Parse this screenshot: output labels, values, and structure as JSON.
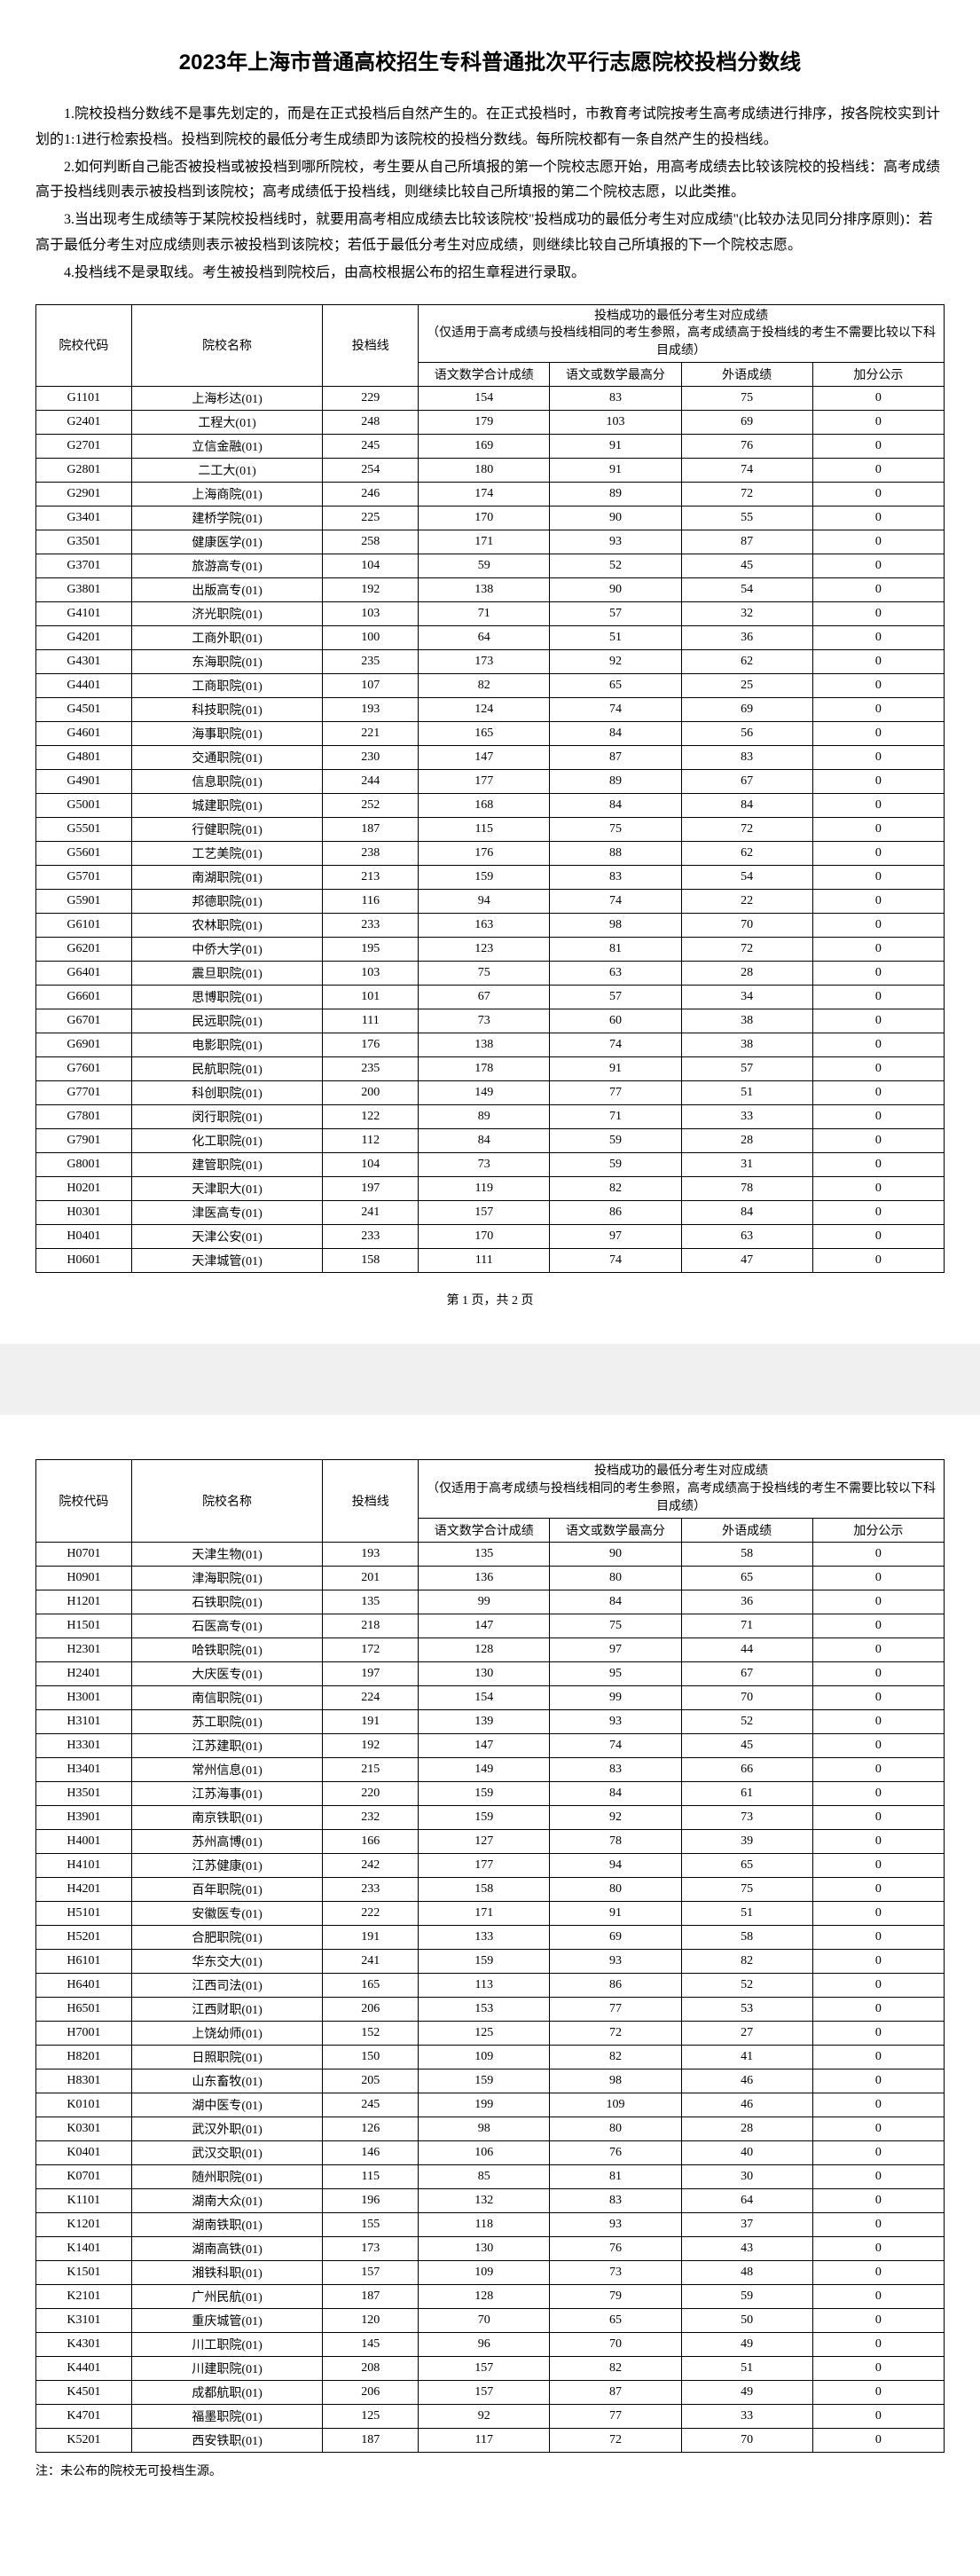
{
  "title": "2023年上海市普通高校招生专科普通批次平行志愿院校投档分数线",
  "intro": [
    "1.院校投档分数线不是事先划定的，而是在正式投档后自然产生的。在正式投档时，市教育考试院按考生高考成绩进行排序，按各院校实到计划的1:1进行检索投档。投档到院校的最低分考生成绩即为该院校的投档分数线。每所院校都有一条自然产生的投档线。",
    "2.如何判断自己能否被投档或被投档到哪所院校，考生要从自己所填报的第一个院校志愿开始，用高考成绩去比较该院校的投档线：高考成绩高于投档线则表示被投档到该院校；高考成绩低于投档线，则继续比较自己所填报的第二个院校志愿，以此类推。",
    "3.当出现考生成绩等于某院校投档线时，就要用高考相应成绩去比较该院校\"投档成功的最低分考生对应成绩\"(比较办法见同分排序原则)：若高于最低分考生对应成绩则表示被投档到该院校；若低于最低分考生对应成绩，则继续比较自己所填报的下一个院校志愿。",
    "4.投档线不是录取线。考生被投档到院校后，由高校根据公布的招生章程进行录取。"
  ],
  "headers": {
    "code": "院校代码",
    "name": "院校名称",
    "score": "投档线",
    "group_title": "投档成功的最低分考生对应成绩",
    "group_sub": "（仅适用于高考成绩与投档线相同的考生参照，高考成绩高于投档线的考生不需要比较以下科目成绩）",
    "sub1": "语文数学合计成绩",
    "sub2": "语文或数学最高分",
    "sub3": "外语成绩",
    "sub4": "加分公示"
  },
  "pageIndicator": "第 1 页，共 2 页",
  "footnote": "注：未公布的院校无可投档生源。",
  "rows1": [
    [
      "G1101",
      "上海杉达(01)",
      "229",
      "154",
      "83",
      "75",
      "0"
    ],
    [
      "G2401",
      "工程大(01)",
      "248",
      "179",
      "103",
      "69",
      "0"
    ],
    [
      "G2701",
      "立信金融(01)",
      "245",
      "169",
      "91",
      "76",
      "0"
    ],
    [
      "G2801",
      "二工大(01)",
      "254",
      "180",
      "91",
      "74",
      "0"
    ],
    [
      "G2901",
      "上海商院(01)",
      "246",
      "174",
      "89",
      "72",
      "0"
    ],
    [
      "G3401",
      "建桥学院(01)",
      "225",
      "170",
      "90",
      "55",
      "0"
    ],
    [
      "G3501",
      "健康医学(01)",
      "258",
      "171",
      "93",
      "87",
      "0"
    ],
    [
      "G3701",
      "旅游高专(01)",
      "104",
      "59",
      "52",
      "45",
      "0"
    ],
    [
      "G3801",
      "出版高专(01)",
      "192",
      "138",
      "90",
      "54",
      "0"
    ],
    [
      "G4101",
      "济光职院(01)",
      "103",
      "71",
      "57",
      "32",
      "0"
    ],
    [
      "G4201",
      "工商外职(01)",
      "100",
      "64",
      "51",
      "36",
      "0"
    ],
    [
      "G4301",
      "东海职院(01)",
      "235",
      "173",
      "92",
      "62",
      "0"
    ],
    [
      "G4401",
      "工商职院(01)",
      "107",
      "82",
      "65",
      "25",
      "0"
    ],
    [
      "G4501",
      "科技职院(01)",
      "193",
      "124",
      "74",
      "69",
      "0"
    ],
    [
      "G4601",
      "海事职院(01)",
      "221",
      "165",
      "84",
      "56",
      "0"
    ],
    [
      "G4801",
      "交通职院(01)",
      "230",
      "147",
      "87",
      "83",
      "0"
    ],
    [
      "G4901",
      "信息职院(01)",
      "244",
      "177",
      "89",
      "67",
      "0"
    ],
    [
      "G5001",
      "城建职院(01)",
      "252",
      "168",
      "84",
      "84",
      "0"
    ],
    [
      "G5501",
      "行健职院(01)",
      "187",
      "115",
      "75",
      "72",
      "0"
    ],
    [
      "G5601",
      "工艺美院(01)",
      "238",
      "176",
      "88",
      "62",
      "0"
    ],
    [
      "G5701",
      "南湖职院(01)",
      "213",
      "159",
      "83",
      "54",
      "0"
    ],
    [
      "G5901",
      "邦德职院(01)",
      "116",
      "94",
      "74",
      "22",
      "0"
    ],
    [
      "G6101",
      "农林职院(01)",
      "233",
      "163",
      "98",
      "70",
      "0"
    ],
    [
      "G6201",
      "中侨大学(01)",
      "195",
      "123",
      "81",
      "72",
      "0"
    ],
    [
      "G6401",
      "震旦职院(01)",
      "103",
      "75",
      "63",
      "28",
      "0"
    ],
    [
      "G6601",
      "思博职院(01)",
      "101",
      "67",
      "57",
      "34",
      "0"
    ],
    [
      "G6701",
      "民远职院(01)",
      "111",
      "73",
      "60",
      "38",
      "0"
    ],
    [
      "G6901",
      "电影职院(01)",
      "176",
      "138",
      "74",
      "38",
      "0"
    ],
    [
      "G7601",
      "民航职院(01)",
      "235",
      "178",
      "91",
      "57",
      "0"
    ],
    [
      "G7701",
      "科创职院(01)",
      "200",
      "149",
      "77",
      "51",
      "0"
    ],
    [
      "G7801",
      "闵行职院(01)",
      "122",
      "89",
      "71",
      "33",
      "0"
    ],
    [
      "G7901",
      "化工职院(01)",
      "112",
      "84",
      "59",
      "28",
      "0"
    ],
    [
      "G8001",
      "建管职院(01)",
      "104",
      "73",
      "59",
      "31",
      "0"
    ],
    [
      "H0201",
      "天津职大(01)",
      "197",
      "119",
      "82",
      "78",
      "0"
    ],
    [
      "H0301",
      "津医高专(01)",
      "241",
      "157",
      "86",
      "84",
      "0"
    ],
    [
      "H0401",
      "天津公安(01)",
      "233",
      "170",
      "97",
      "63",
      "0"
    ],
    [
      "H0601",
      "天津城管(01)",
      "158",
      "111",
      "74",
      "47",
      "0"
    ]
  ],
  "rows2": [
    [
      "H0701",
      "天津生物(01)",
      "193",
      "135",
      "90",
      "58",
      "0"
    ],
    [
      "H0901",
      "津海职院(01)",
      "201",
      "136",
      "80",
      "65",
      "0"
    ],
    [
      "H1201",
      "石铁职院(01)",
      "135",
      "99",
      "84",
      "36",
      "0"
    ],
    [
      "H1501",
      "石医高专(01)",
      "218",
      "147",
      "75",
      "71",
      "0"
    ],
    [
      "H2301",
      "哈铁职院(01)",
      "172",
      "128",
      "97",
      "44",
      "0"
    ],
    [
      "H2401",
      "大庆医专(01)",
      "197",
      "130",
      "95",
      "67",
      "0"
    ],
    [
      "H3001",
      "南信职院(01)",
      "224",
      "154",
      "99",
      "70",
      "0"
    ],
    [
      "H3101",
      "苏工职院(01)",
      "191",
      "139",
      "93",
      "52",
      "0"
    ],
    [
      "H3301",
      "江苏建职(01)",
      "192",
      "147",
      "74",
      "45",
      "0"
    ],
    [
      "H3401",
      "常州信息(01)",
      "215",
      "149",
      "83",
      "66",
      "0"
    ],
    [
      "H3501",
      "江苏海事(01)",
      "220",
      "159",
      "84",
      "61",
      "0"
    ],
    [
      "H3901",
      "南京铁职(01)",
      "232",
      "159",
      "92",
      "73",
      "0"
    ],
    [
      "H4001",
      "苏州高博(01)",
      "166",
      "127",
      "78",
      "39",
      "0"
    ],
    [
      "H4101",
      "江苏健康(01)",
      "242",
      "177",
      "94",
      "65",
      "0"
    ],
    [
      "H4201",
      "百年职院(01)",
      "233",
      "158",
      "80",
      "75",
      "0"
    ],
    [
      "H5101",
      "安徽医专(01)",
      "222",
      "171",
      "91",
      "51",
      "0"
    ],
    [
      "H5201",
      "合肥职院(01)",
      "191",
      "133",
      "69",
      "58",
      "0"
    ],
    [
      "H6101",
      "华东交大(01)",
      "241",
      "159",
      "93",
      "82",
      "0"
    ],
    [
      "H6401",
      "江西司法(01)",
      "165",
      "113",
      "86",
      "52",
      "0"
    ],
    [
      "H6501",
      "江西财职(01)",
      "206",
      "153",
      "77",
      "53",
      "0"
    ],
    [
      "H7001",
      "上饶幼师(01)",
      "152",
      "125",
      "72",
      "27",
      "0"
    ],
    [
      "H8201",
      "日照职院(01)",
      "150",
      "109",
      "82",
      "41",
      "0"
    ],
    [
      "H8301",
      "山东畜牧(01)",
      "205",
      "159",
      "98",
      "46",
      "0"
    ],
    [
      "K0101",
      "湖中医专(01)",
      "245",
      "199",
      "109",
      "46",
      "0"
    ],
    [
      "K0301",
      "武汉外职(01)",
      "126",
      "98",
      "80",
      "28",
      "0"
    ],
    [
      "K0401",
      "武汉交职(01)",
      "146",
      "106",
      "76",
      "40",
      "0"
    ],
    [
      "K0701",
      "随州职院(01)",
      "115",
      "85",
      "81",
      "30",
      "0"
    ],
    [
      "K1101",
      "湖南大众(01)",
      "196",
      "132",
      "83",
      "64",
      "0"
    ],
    [
      "K1201",
      "湖南铁职(01)",
      "155",
      "118",
      "93",
      "37",
      "0"
    ],
    [
      "K1401",
      "湖南高铁(01)",
      "173",
      "130",
      "76",
      "43",
      "0"
    ],
    [
      "K1501",
      "湘铁科职(01)",
      "157",
      "109",
      "73",
      "48",
      "0"
    ],
    [
      "K2101",
      "广州民航(01)",
      "187",
      "128",
      "79",
      "59",
      "0"
    ],
    [
      "K3101",
      "重庆城管(01)",
      "120",
      "70",
      "65",
      "50",
      "0"
    ],
    [
      "K4301",
      "川工职院(01)",
      "145",
      "96",
      "70",
      "49",
      "0"
    ],
    [
      "K4401",
      "川建职院(01)",
      "208",
      "157",
      "82",
      "51",
      "0"
    ],
    [
      "K4501",
      "成都航职(01)",
      "206",
      "157",
      "87",
      "49",
      "0"
    ],
    [
      "K4701",
      "福墨职院(01)",
      "125",
      "92",
      "77",
      "33",
      "0"
    ],
    [
      "K5201",
      "西安铁职(01)",
      "187",
      "117",
      "72",
      "70",
      "0"
    ]
  ]
}
